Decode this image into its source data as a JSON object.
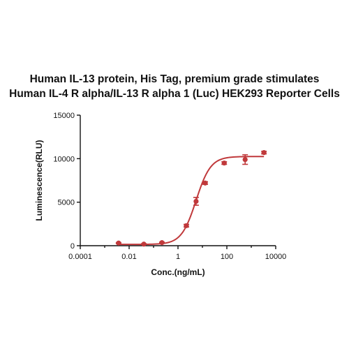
{
  "chart_data": {
    "type": "scatter",
    "title_line1": "Human IL-13 protein, His Tag, premium grade stimulates",
    "title_line2": "Human IL-4 R alpha/IL-13 R alpha 1 (Luc) HEK293 Reporter Cells",
    "xlabel": "Conc.(ng/mL)",
    "ylabel": "Luminescence(RLU)",
    "x_scale": "log",
    "xlim": [
      0.0001,
      10000
    ],
    "ylim": [
      0,
      15000
    ],
    "x_ticks": [
      {
        "value": 0.0001,
        "label": "0.0001"
      },
      {
        "value": 0.01,
        "label": "0.01"
      },
      {
        "value": 1,
        "label": "1"
      },
      {
        "value": 100,
        "label": "100"
      },
      {
        "value": 10000,
        "label": "10000"
      }
    ],
    "y_ticks": [
      {
        "value": 0,
        "label": "0"
      },
      {
        "value": 5000,
        "label": "5000"
      },
      {
        "value": 10000,
        "label": "10000"
      },
      {
        "value": 15000,
        "label": "15000"
      }
    ],
    "color": "#c0393b",
    "points": [
      {
        "x": 0.0037,
        "y": 300,
        "err": 60
      },
      {
        "x": 0.04,
        "y": 180,
        "err": 50
      },
      {
        "x": 0.22,
        "y": 350,
        "err": 60
      },
      {
        "x": 2.2,
        "y": 2300,
        "err": 150
      },
      {
        "x": 5.5,
        "y": 5100,
        "err": 450
      },
      {
        "x": 13,
        "y": 7200,
        "err": 150
      },
      {
        "x": 78,
        "y": 9500,
        "err": 150
      },
      {
        "x": 560,
        "y": 9900,
        "err": 550
      },
      {
        "x": 3300,
        "y": 10700,
        "err": 150
      }
    ],
    "fit": {
      "bottom": 150,
      "top": 10250,
      "ec50": 5.5,
      "hill": 1.45
    },
    "grid": false,
    "legend": "none"
  }
}
